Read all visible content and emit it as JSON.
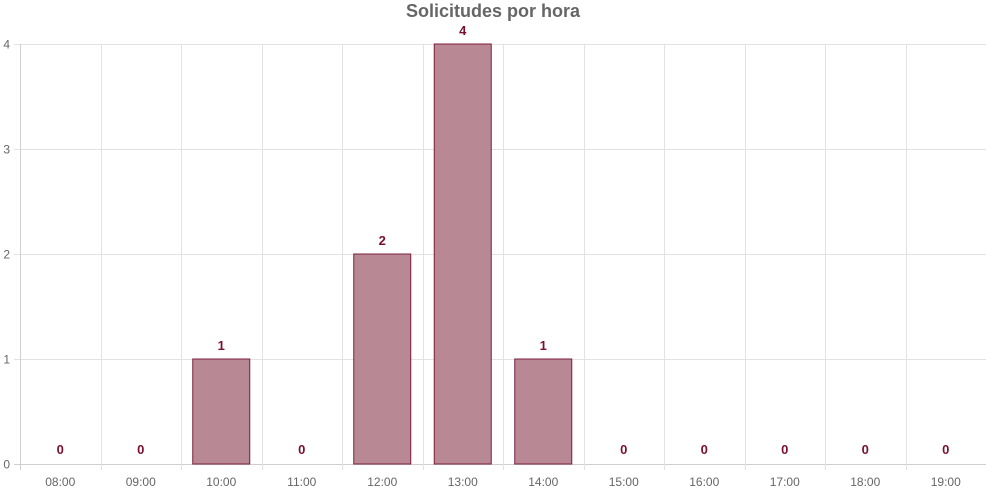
{
  "chart_data": {
    "type": "bar",
    "title": "Solicitudes por hora",
    "categories": [
      "08:00",
      "09:00",
      "10:00",
      "11:00",
      "12:00",
      "13:00",
      "14:00",
      "15:00",
      "16:00",
      "17:00",
      "18:00",
      "19:00"
    ],
    "values": [
      0,
      0,
      1,
      0,
      2,
      4,
      1,
      0,
      0,
      0,
      0,
      0
    ],
    "ylim": [
      0,
      4
    ],
    "yticks": [
      0,
      1,
      2,
      3,
      4
    ],
    "xlabel": "",
    "ylabel": "",
    "grid": true,
    "data_labels": true,
    "colors": {
      "bar_fill": "#b98895",
      "bar_stroke": "#7a1e3c",
      "data_label": "#7a0f2e",
      "grid": "#e2e2e2",
      "axis_text": "#666666"
    }
  }
}
